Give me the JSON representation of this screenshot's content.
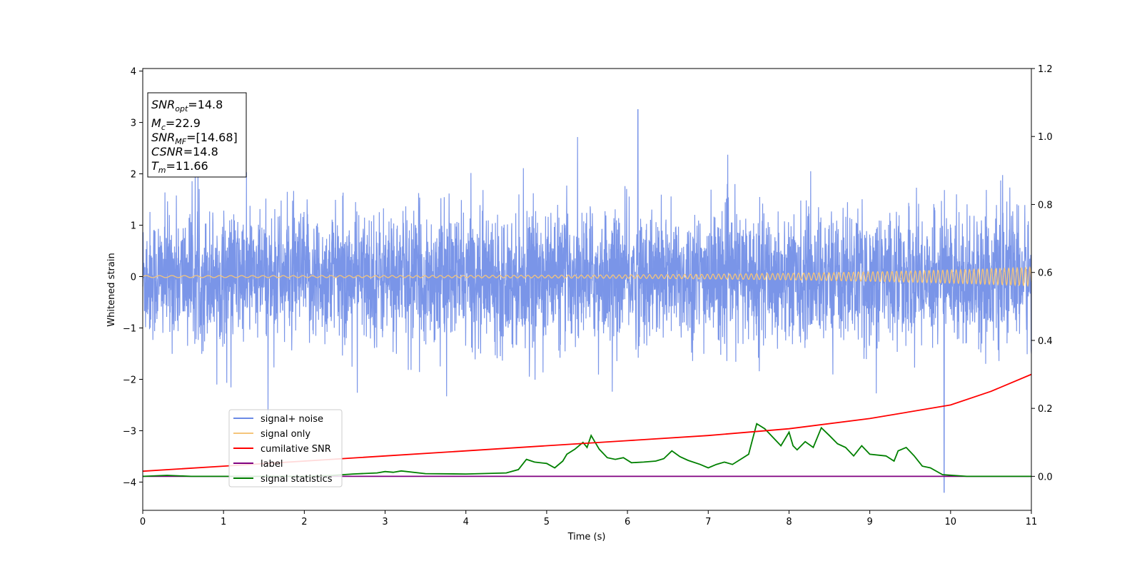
{
  "chart_data": {
    "type": "line",
    "title": "",
    "xlabel": "Time (s)",
    "ylabel": "Whitened strain",
    "xlim": [
      0,
      11
    ],
    "ylim_left": [
      -4.55,
      4.05
    ],
    "ylim_right": [
      -0.1,
      1.2
    ],
    "x_ticks": [
      "0",
      "1",
      "2",
      "3",
      "4",
      "5",
      "6",
      "7",
      "8",
      "9",
      "10",
      "11"
    ],
    "y_left_ticks": [
      "−4",
      "−3",
      "−2",
      "−1",
      "0",
      "1",
      "2",
      "3",
      "4"
    ],
    "y_right_ticks": [
      "0.0",
      "0.2",
      "0.4",
      "0.6",
      "0.8",
      "1.0",
      "1.2"
    ],
    "grid": false,
    "legend_position": "lower-left",
    "series": [
      {
        "name": "signal+ noise",
        "axis": "left",
        "color": "#6b8ae6",
        "description_stats": {
          "mean": 0.0,
          "typical_amplitude": 1.5,
          "max": 3.25,
          "min": -4.2
        }
      },
      {
        "name": "signal only",
        "axis": "left",
        "color": "#f5c57a",
        "description_stats": {
          "amplitude_start": 0.02,
          "amplitude_end": 0.18
        }
      },
      {
        "name": "cumilative SNR",
        "axis": "right",
        "color": "#ff0000",
        "x": [
          0,
          1,
          2,
          3,
          4,
          5,
          6,
          7,
          8,
          9,
          10,
          10.5,
          11
        ],
        "values": [
          0.015,
          0.03,
          0.045,
          0.06,
          0.075,
          0.09,
          0.105,
          0.12,
          0.14,
          0.17,
          0.21,
          0.25,
          0.3
        ]
      },
      {
        "name": "label",
        "axis": "right",
        "color": "#800080",
        "x": [
          0,
          11
        ],
        "values": [
          0.0,
          0.0
        ]
      },
      {
        "name": "signal statistics",
        "axis": "right",
        "color": "#008000",
        "x": [
          0,
          0.3,
          0.6,
          1,
          1.5,
          2,
          2.3,
          2.6,
          2.9,
          3.0,
          3.1,
          3.2,
          3.5,
          4,
          4.5,
          4.65,
          4.75,
          4.85,
          5.0,
          5.1,
          5.2,
          5.25,
          5.35,
          5.45,
          5.5,
          5.55,
          5.65,
          5.75,
          5.85,
          5.95,
          6.05,
          6.2,
          6.35,
          6.45,
          6.55,
          6.65,
          6.75,
          6.9,
          7.0,
          7.1,
          7.2,
          7.3,
          7.4,
          7.5,
          7.55,
          7.6,
          7.7,
          7.8,
          7.9,
          8.0,
          8.05,
          8.1,
          8.2,
          8.3,
          8.4,
          8.5,
          8.6,
          8.7,
          8.8,
          8.9,
          9.0,
          9.2,
          9.3,
          9.35,
          9.45,
          9.55,
          9.65,
          9.75,
          9.9,
          10.2,
          11
        ],
        "values": [
          0.0,
          0.003,
          0.0,
          0.0,
          0.0,
          0.0,
          0.002,
          0.007,
          0.01,
          0.014,
          0.012,
          0.016,
          0.008,
          0.007,
          0.01,
          0.02,
          0.05,
          0.042,
          0.038,
          0.025,
          0.045,
          0.065,
          0.08,
          0.1,
          0.085,
          0.12,
          0.08,
          0.055,
          0.05,
          0.055,
          0.04,
          0.042,
          0.045,
          0.052,
          0.075,
          0.058,
          0.047,
          0.035,
          0.025,
          0.035,
          0.042,
          0.035,
          0.05,
          0.065,
          0.11,
          0.155,
          0.14,
          0.115,
          0.09,
          0.13,
          0.09,
          0.078,
          0.102,
          0.085,
          0.143,
          0.12,
          0.096,
          0.085,
          0.06,
          0.09,
          0.065,
          0.06,
          0.045,
          0.075,
          0.085,
          0.06,
          0.03,
          0.025,
          0.005,
          0.0,
          0.0
        ]
      }
    ],
    "info_box": [
      {
        "main": "SNR",
        "sub": "opt",
        "rest": "=14.8"
      },
      {
        "main": "M",
        "sub": "c",
        "rest": "=22.9"
      },
      {
        "main": "SNR",
        "sub": "MF",
        "rest": "=[14.68]"
      },
      {
        "main": "CSNR",
        "sub": "",
        "rest": "=14.8"
      },
      {
        "main": "T",
        "sub": "m",
        "rest": "=11.66"
      }
    ]
  }
}
